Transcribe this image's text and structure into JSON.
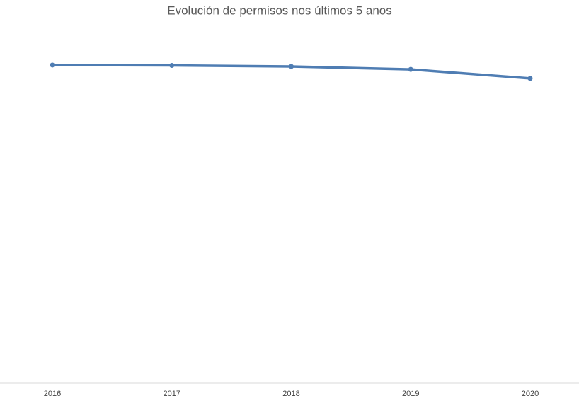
{
  "chart_data": {
    "type": "line",
    "title": "Evolución de permisos nos últimos 5 anos",
    "categories": [
      "2016",
      "2017",
      "2018",
      "2019",
      "2020"
    ],
    "series": [
      {
        "color": "#4f7db3",
        "values": [
          87.9,
          87.8,
          87.5,
          86.7,
          84.2
        ]
      }
    ],
    "ylim": [
      0,
      100
    ]
  }
}
